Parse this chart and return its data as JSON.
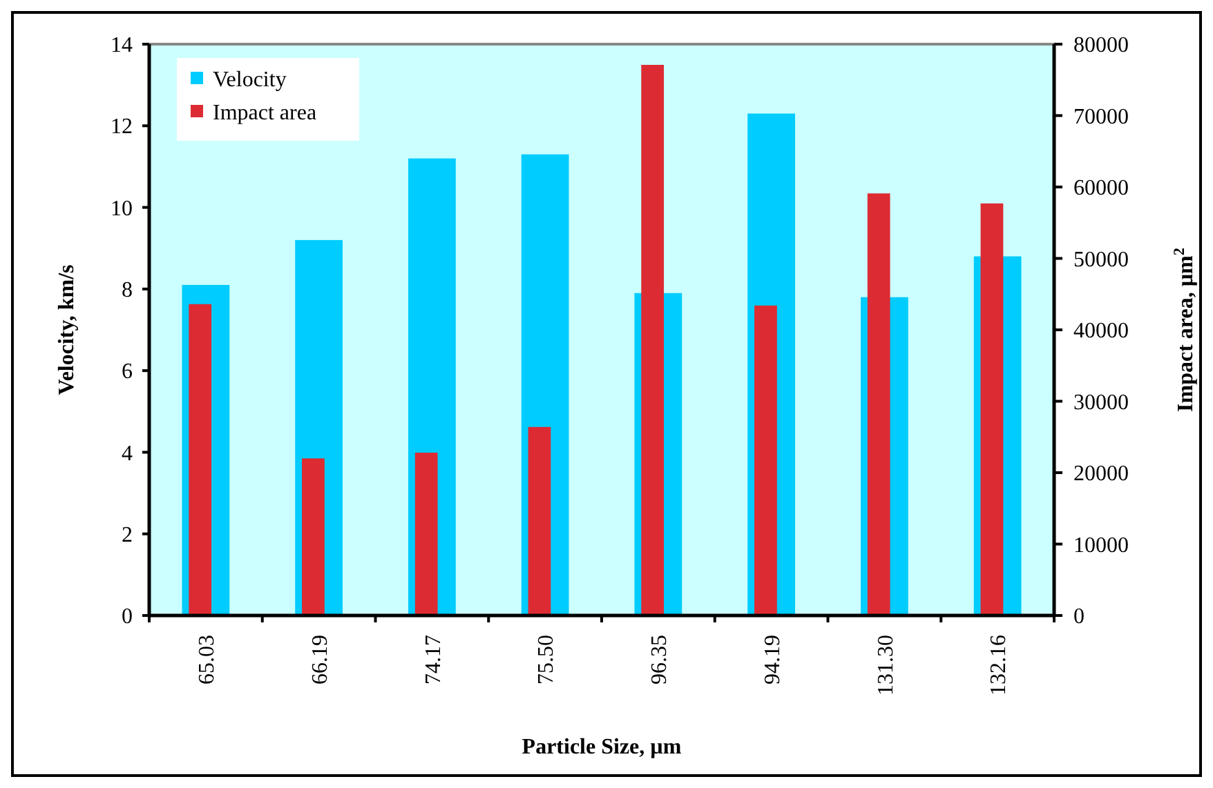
{
  "chart_data": {
    "type": "bar",
    "xlabel": "Particle Size, µm",
    "ylabel": "Velocity, km/s",
    "y2label": "Impact area, µm$^{2}$",
    "categories": [
      "65.03",
      "66.19",
      "74.17",
      "75.50",
      "96.35",
      "94.19",
      "131.30",
      "132.16"
    ],
    "series": [
      {
        "name": "Velocity",
        "color": "#00ccff",
        "values": [
          8.1,
          9.2,
          11.2,
          11.3,
          7.9,
          12.3,
          7.8,
          8.8
        ]
      },
      {
        "name": "Impact area",
        "color": "#dd2b33",
        "axis": "y2",
        "values": [
          43600,
          22000,
          22800,
          26400,
          77100,
          43400,
          59100,
          57700
        ]
      }
    ],
    "ylim": [
      0,
      14
    ],
    "yticks": [
      0,
      2,
      4,
      6,
      8,
      10,
      12,
      14
    ],
    "y2lim": [
      0,
      80000
    ],
    "y2ticks": [
      0,
      10000,
      20000,
      30000,
      40000,
      50000,
      60000,
      70000,
      80000
    ],
    "legend": "top left",
    "grid": false
  }
}
